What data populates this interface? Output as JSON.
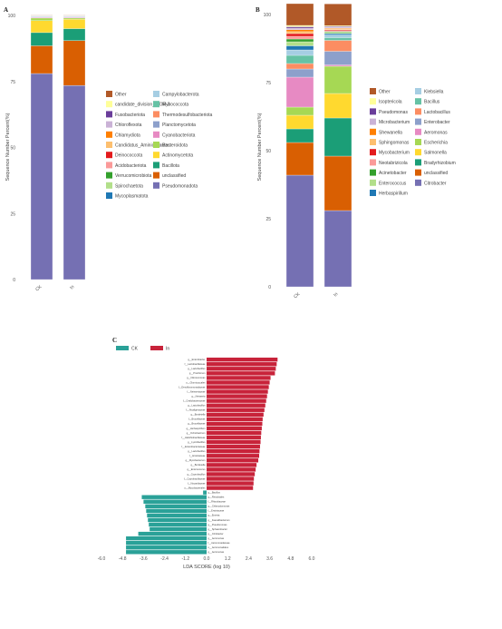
{
  "panel_labels": {
    "a": "A",
    "b": "B",
    "c": "C"
  },
  "chart_data": [
    {
      "type": "bar",
      "stacked": true,
      "panel": "A",
      "ylabel": "Sequence Number Percent(%)",
      "ylim": [
        0,
        100
      ],
      "yticks": [
        "0",
        "25",
        "50",
        "75",
        "100"
      ],
      "categories": [
        "CK",
        "In"
      ],
      "legend_placement": "right",
      "series": [
        {
          "name": "Pseudomonadota",
          "color": "#7570b3",
          "values": [
            78,
            73.5
          ]
        },
        {
          "name": "unclassified",
          "color": "#d95f02",
          "values": [
            10.5,
            17
          ]
        },
        {
          "name": "Bacillota",
          "color": "#1b9e77",
          "values": [
            5,
            4.5
          ]
        },
        {
          "name": "Actinomycetota",
          "color": "#ffd92f",
          "values": [
            4.5,
            3.5
          ]
        },
        {
          "name": "Bacteroidota",
          "color": "#a6d854",
          "values": [
            1,
            0.5
          ]
        },
        {
          "name": "Cyanobacteriota",
          "color": "#e78ac3",
          "values": [
            0.3,
            0.3
          ]
        },
        {
          "name": "Planctomycetota",
          "color": "#8da0cb",
          "values": [
            0.2,
            0.2
          ]
        },
        {
          "name": "Thermodesulfobacteriota",
          "color": "#fc8d62",
          "values": [
            0.1,
            0.1
          ]
        },
        {
          "name": "Myxococcota",
          "color": "#66c2a5",
          "values": [
            0.1,
            0.1
          ]
        },
        {
          "name": "Campylobacterota",
          "color": "#a6cee3",
          "values": [
            0.1,
            0.1
          ]
        },
        {
          "name": "Mycoplasmatota",
          "color": "#1f78b4",
          "values": [
            0.05,
            0.05
          ]
        },
        {
          "name": "Spirochaetota",
          "color": "#b2df8a",
          "values": [
            0.05,
            0.05
          ]
        },
        {
          "name": "Verrucomicrobiota",
          "color": "#33a02c",
          "values": [
            0.05,
            0.05
          ]
        },
        {
          "name": "Acidobacteriota",
          "color": "#fb9a99",
          "values": [
            0.05,
            0.05
          ]
        },
        {
          "name": "Deinococcota",
          "color": "#e31a1c",
          "values": [
            0.05,
            0.05
          ]
        },
        {
          "name": "Candidatus_Aminicenantes",
          "color": "#fdbf6f",
          "values": [
            0.05,
            0.05
          ]
        },
        {
          "name": "Chlamydiota",
          "color": "#ff7f00",
          "values": [
            0.05,
            0.05
          ]
        },
        {
          "name": "Chloroflexota",
          "color": "#cab2d6",
          "values": [
            0.05,
            0.05
          ]
        },
        {
          "name": "Fusobacteriota",
          "color": "#6a3d9a",
          "values": [
            0.05,
            0.05
          ]
        },
        {
          "name": "candidate_division_WOR-3",
          "color": "#ffff99",
          "values": [
            0.05,
            0.05
          ]
        },
        {
          "name": "Other",
          "color": "#b15928",
          "values": [
            0.05,
            0.05
          ]
        }
      ],
      "legend_order": [
        [
          "Other",
          "Campylobacterota"
        ],
        [
          "candidate_division_WOR-3",
          "Myxococcota"
        ],
        [
          "Fusobacteriota",
          "Thermodesulfobacteriota"
        ],
        [
          "Chloroflexota",
          "Planctomycetota"
        ],
        [
          "Chlamydiota",
          "Cyanobacteriota"
        ],
        [
          "Candidatus_Aminicenantes",
          "Bacteroidota"
        ],
        [
          "Deinococcota",
          "Actinomycetota"
        ],
        [
          "Acidobacteriota",
          "Bacillota"
        ],
        [
          "Verrucomicrobiota",
          "unclassified"
        ],
        [
          "Spirochaetota",
          "Pseudomonadota"
        ],
        [
          "Mycoplasmatota",
          ""
        ]
      ]
    },
    {
      "type": "bar",
      "stacked": true,
      "panel": "B",
      "ylabel": "Sequence Number Percent(%)",
      "ylim": [
        0,
        100
      ],
      "yticks": [
        "0",
        "25",
        "50",
        "75",
        "100"
      ],
      "categories": [
        "CK",
        "In"
      ],
      "legend_placement": "right",
      "series": [
        {
          "name": "Citrobacter",
          "color": "#7570b3",
          "values": [
            41,
            28
          ]
        },
        {
          "name": "unclassified",
          "color": "#d95f02",
          "values": [
            12,
            20
          ]
        },
        {
          "name": "Bradyrhizobium",
          "color": "#1b9e77",
          "values": [
            5,
            14
          ]
        },
        {
          "name": "Salmonella",
          "color": "#ffd92f",
          "values": [
            5,
            9
          ]
        },
        {
          "name": "Escherichia",
          "color": "#a6d854",
          "values": [
            3,
            10
          ]
        },
        {
          "name": "Aeromonas",
          "color": "#e78ac3",
          "values": [
            11,
            0.5
          ]
        },
        {
          "name": "Enterobacter",
          "color": "#8da0cb",
          "values": [
            3,
            5
          ]
        },
        {
          "name": "Lactobacillus",
          "color": "#fc8d62",
          "values": [
            2,
            4
          ]
        },
        {
          "name": "Bacillus",
          "color": "#66c2a5",
          "values": [
            3,
            1
          ]
        },
        {
          "name": "Klebsiella",
          "color": "#a6cee3",
          "values": [
            2,
            1
          ]
        },
        {
          "name": "Herbaspirillum",
          "color": "#1f78b4",
          "values": [
            1.5,
            0.5
          ]
        },
        {
          "name": "Enterococcus",
          "color": "#b2df8a",
          "values": [
            1.5,
            0.5
          ]
        },
        {
          "name": "Acinetobacter",
          "color": "#33a02c",
          "values": [
            1,
            0.3
          ]
        },
        {
          "name": "Neotabrizicola",
          "color": "#fb9a99",
          "values": [
            1,
            0.3
          ]
        },
        {
          "name": "Mycobacterium",
          "color": "#e31a1c",
          "values": [
            1,
            0.3
          ]
        },
        {
          "name": "Sphingomonas",
          "color": "#fdbf6f",
          "values": [
            0.7,
            0.3
          ]
        },
        {
          "name": "Shewanella",
          "color": "#ff7f00",
          "values": [
            0.7,
            0.3
          ]
        },
        {
          "name": "Microbacterium",
          "color": "#cab2d6",
          "values": [
            0.6,
            0.3
          ]
        },
        {
          "name": "Pseudomonas",
          "color": "#6a3d9a",
          "values": [
            0.5,
            0.3
          ]
        },
        {
          "name": "Isoptericola",
          "color": "#ffff99",
          "values": [
            0.5,
            0.3
          ]
        },
        {
          "name": "Other",
          "color": "#b15928",
          "values": [
            8,
            8
          ]
        }
      ],
      "legend_order": [
        [
          "Other",
          "Klebsiella"
        ],
        [
          "Isoptericola",
          "Bacillus"
        ],
        [
          "Pseudomonas",
          "Lactobacillus"
        ],
        [
          "Microbacterium",
          "Enterobacter"
        ],
        [
          "Shewanella",
          "Aeromonas"
        ],
        [
          "Sphingomonas",
          "Escherichia"
        ],
        [
          "Mycobacterium",
          "Salmonella"
        ],
        [
          "Neotabrizicola",
          "Bradyrhizobium"
        ],
        [
          "Acinetobacter",
          "unclassified"
        ],
        [
          "Enterococcus",
          "Citrobacter"
        ],
        [
          "Herbaspirillum",
          ""
        ]
      ]
    },
    {
      "type": "bar",
      "orientation": "horizontal",
      "panel": "C",
      "xlabel": "LDA SCORE (log 10)",
      "xlim": [
        -6,
        6
      ],
      "xticks": [
        "-6.0",
        "-4.8",
        "-3.6",
        "-2.4",
        "-1.2",
        "0.0",
        "1.2",
        "2.4",
        "3.6",
        "4.8",
        "6.0"
      ],
      "legend": [
        {
          "name": "CK",
          "color": "#2aa198"
        },
        {
          "name": "In",
          "color": "#c8233a"
        }
      ],
      "bars": [
        {
          "label": "g__Enterobacter",
          "group": "In",
          "value": 4.05
        },
        {
          "label": "f__Lactobacillaceae",
          "group": "In",
          "value": 4.0
        },
        {
          "label": "g__Lactobacillus",
          "group": "In",
          "value": 3.95
        },
        {
          "label": "g__Prochlorum",
          "group": "In",
          "value": 3.9
        },
        {
          "label": "g__Nitrosomonas",
          "group": "In",
          "value": 3.65
        },
        {
          "label": "o__Glumicoccales",
          "group": "In",
          "value": 3.6
        },
        {
          "label": "f__Desulfuromonadaceae",
          "group": "In",
          "value": 3.55
        },
        {
          "label": "f__Neisseriaceae",
          "group": "In",
          "value": 3.5
        },
        {
          "label": "g__Neisseria",
          "group": "In",
          "value": 3.45
        },
        {
          "label": "f__Oxalobacteraceae",
          "group": "In",
          "value": 3.4
        },
        {
          "label": "g__Lactobacillus",
          "group": "In",
          "value": 3.35
        },
        {
          "label": "f__Alcaligenaceae",
          "group": "In",
          "value": 3.3
        },
        {
          "label": "g__Bordetella",
          "group": "In",
          "value": 3.25
        },
        {
          "label": "f__Brucellaceae",
          "group": "In",
          "value": 3.2
        },
        {
          "label": "g__Brucellaceae",
          "group": "In",
          "value": 3.18
        },
        {
          "label": "g__Herbaspirillum",
          "group": "In",
          "value": 3.15
        },
        {
          "label": "g__Ochrobactrum",
          "group": "In",
          "value": 3.12
        },
        {
          "label": "f__Halothiobacillaceae",
          "group": "In",
          "value": 3.1
        },
        {
          "label": "g__Lysinibacillus",
          "group": "In",
          "value": 3.08
        },
        {
          "label": "f__Enterobacteriaceae",
          "group": "In",
          "value": 3.05
        },
        {
          "label": "g__Lactobacillus",
          "group": "In",
          "value": 3.02
        },
        {
          "label": "f__Erwiniaceae",
          "group": "In",
          "value": 3.0
        },
        {
          "label": "g__Mycobacterium",
          "group": "In",
          "value": 2.95
        },
        {
          "label": "g__Bordetella",
          "group": "In",
          "value": 2.85
        },
        {
          "label": "g__Enterococcus",
          "group": "In",
          "value": 2.8
        },
        {
          "label": "g__Coprobacillus",
          "group": "In",
          "value": 2.75
        },
        {
          "label": "f__Coprobacillaceae",
          "group": "In",
          "value": 2.7
        },
        {
          "label": "f__Nocardiaceae",
          "group": "In",
          "value": 2.68
        },
        {
          "label": "o__Mycobacteriales",
          "group": "In",
          "value": 2.65
        },
        {
          "label": "g__Bacillus",
          "group": "CK",
          "value": -0.2
        },
        {
          "label": "g__Rhizobiales",
          "group": "CK",
          "value": -3.7
        },
        {
          "label": "f__Rhizobiaceae",
          "group": "CK",
          "value": -3.6
        },
        {
          "label": "g__Chlamydomonas",
          "group": "CK",
          "value": -3.5
        },
        {
          "label": "f__Erwiniaceae",
          "group": "CK",
          "value": -3.45
        },
        {
          "label": "g__Erwinia",
          "group": "CK",
          "value": -3.4
        },
        {
          "label": "g__Faecalibacterium",
          "group": "CK",
          "value": -3.35
        },
        {
          "label": "g__Pseudomonas",
          "group": "CK",
          "value": -3.3
        },
        {
          "label": "g__Sphaerobacter",
          "group": "CK",
          "value": -3.25
        },
        {
          "label": "g__Citrobacter",
          "group": "CK",
          "value": -3.9
        },
        {
          "label": "g__Aeromonas",
          "group": "CK",
          "value": -4.6
        },
        {
          "label": "f__Aeromonadaceae",
          "group": "CK",
          "value": -4.6
        },
        {
          "label": "o__Aeromonadales",
          "group": "CK",
          "value": -4.6
        },
        {
          "label": "g__Aeromonas",
          "group": "CK",
          "value": -4.6
        }
      ]
    }
  ]
}
